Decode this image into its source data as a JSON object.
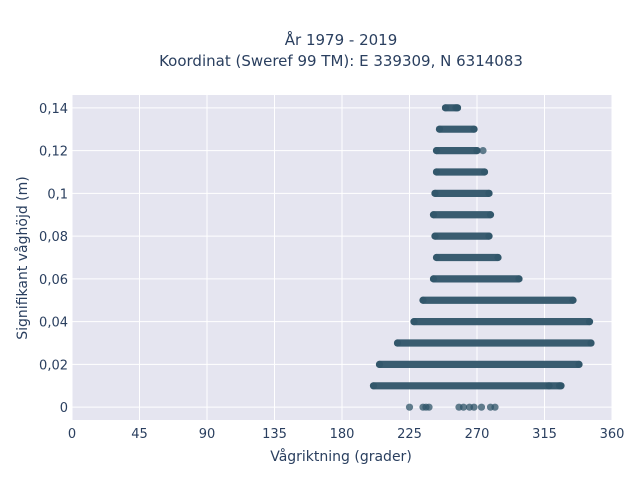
{
  "chart_data": {
    "type": "scatter",
    "title_line1": "År 1979 - 2019",
    "title_line2": "Koordinat (Sweref 99 TM): E 339309, N 6314083",
    "xlabel": "Vågriktning (grader)",
    "ylabel": "Signifikant våghöjd (m)",
    "xlim": [
      0,
      360
    ],
    "ylim": [
      -0.006,
      0.146
    ],
    "x_ticks": [
      0,
      45,
      90,
      135,
      180,
      225,
      270,
      315,
      360
    ],
    "x_tick_labels": [
      "0",
      "45",
      "90",
      "135",
      "180",
      "225",
      "270",
      "315",
      "360"
    ],
    "y_ticks": [
      0,
      0.02,
      0.04,
      0.06,
      0.08,
      0.1,
      0.12,
      0.14
    ],
    "y_tick_labels": [
      "0",
      "0,02",
      "0,04",
      "0,06",
      "0,08",
      "0,1",
      "0,12",
      "0,14"
    ],
    "grid": true,
    "legend": "none",
    "colors": {
      "marker": "#2f5468",
      "plot_bg": "#e5e5f0",
      "grid": "#ffffff",
      "text": "#2a3f5f"
    },
    "bands": [
      {
        "y": 0.14,
        "x_range": [
          249,
          257
        ]
      },
      {
        "y": 0.13,
        "x_range": [
          245,
          268
        ]
      },
      {
        "y": 0.12,
        "x_range": [
          243,
          270
        ]
      },
      {
        "y": 0.11,
        "x_range": [
          243,
          275
        ]
      },
      {
        "y": 0.1,
        "x_range": [
          242,
          278
        ]
      },
      {
        "y": 0.09,
        "x_range": [
          241,
          279
        ]
      },
      {
        "y": 0.08,
        "x_range": [
          242,
          278
        ]
      },
      {
        "y": 0.07,
        "x_range": [
          243,
          284
        ]
      },
      {
        "y": 0.06,
        "x_range": [
          241,
          298
        ]
      },
      {
        "y": 0.05,
        "x_range": [
          234,
          334
        ]
      },
      {
        "y": 0.04,
        "x_range": [
          228,
          345
        ]
      },
      {
        "y": 0.03,
        "x_range": [
          217,
          346
        ]
      },
      {
        "y": 0.02,
        "x_range": [
          205,
          338
        ]
      },
      {
        "y": 0.01,
        "x_range": [
          201,
          326
        ]
      }
    ],
    "points": [
      {
        "x": 225,
        "y": 0
      },
      {
        "x": 234,
        "y": 0
      },
      {
        "x": 236,
        "y": 0
      },
      {
        "x": 238,
        "y": 0
      },
      {
        "x": 258,
        "y": 0
      },
      {
        "x": 261,
        "y": 0
      },
      {
        "x": 265,
        "y": 0
      },
      {
        "x": 268,
        "y": 0
      },
      {
        "x": 273,
        "y": 0
      },
      {
        "x": 279,
        "y": 0
      },
      {
        "x": 282,
        "y": 0
      },
      {
        "x": 318,
        "y": 0.01
      },
      {
        "x": 325,
        "y": 0.01
      },
      {
        "x": 256,
        "y": 0.14
      },
      {
        "x": 274,
        "y": 0.12
      }
    ]
  }
}
